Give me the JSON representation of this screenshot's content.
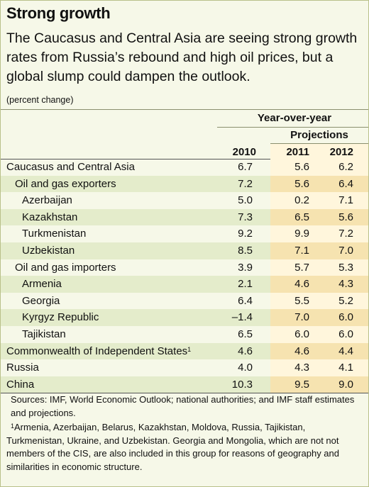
{
  "title": "Strong growth",
  "subtitle": "The Caucasus and Central Asia are seeing strong growth rates from Russia’s rebound and high oil prices, but a global slump could dampen the outlook.",
  "unit": "(percent change)",
  "header": {
    "group": "Year-over-year",
    "projections": "Projections",
    "columns": [
      "2010",
      "2011",
      "2012"
    ]
  },
  "rows": [
    {
      "label": "Caucasus and Central Asia",
      "values": [
        "6.7",
        "5.6",
        "6.2"
      ]
    },
    {
      "label": "Oil and gas exporters",
      "values": [
        "7.2",
        "5.6",
        "6.4"
      ]
    },
    {
      "label": "Azerbaijan",
      "values": [
        "5.0",
        "0.2",
        "7.1"
      ]
    },
    {
      "label": "Kazakhstan",
      "values": [
        "7.3",
        "6.5",
        "5.6"
      ]
    },
    {
      "label": "Turkmenistan",
      "values": [
        "9.2",
        "9.9",
        "7.2"
      ]
    },
    {
      "label": "Uzbekistan",
      "values": [
        "8.5",
        "7.1",
        "7.0"
      ]
    },
    {
      "label": "Oil and gas importers",
      "values": [
        "3.9",
        "5.7",
        "5.3"
      ]
    },
    {
      "label": "Armenia",
      "values": [
        "2.1",
        "4.6",
        "4.3"
      ]
    },
    {
      "label": "Georgia",
      "values": [
        "6.4",
        "5.5",
        "5.2"
      ]
    },
    {
      "label": "Kyrgyz Republic",
      "values": [
        "–1.4",
        "7.0",
        "6.0"
      ]
    },
    {
      "label": "Tajikistan",
      "values": [
        "6.5",
        "6.0",
        "6.0"
      ]
    },
    {
      "label": "Commonwealth of Independent States",
      "footnote": "1",
      "values": [
        "4.6",
        "4.6",
        "4.4"
      ]
    },
    {
      "label": "Russia",
      "values": [
        "4.0",
        "4.3",
        "4.1"
      ]
    },
    {
      "label": "China",
      "values": [
        "10.3",
        "9.5",
        "9.0"
      ]
    }
  ],
  "sources": "Sources: IMF, World Economic Outlook; national authorities; and IMF staff estimates and projections.",
  "footnote": {
    "mark": "1",
    "text": "Armenia, Azerbaijan, Belarus, Kazakhstan, Moldova, Russia, Tajikistan, Turkmenistan, Ukraine, and Uzbekistan. Georgia and Mongolia, which are not not members of the CIS, are also included in this group for reasons of geography and similarities in economic structure."
  },
  "colors": {
    "background": "#f6f8e8",
    "row_green": "#e4eccb",
    "projection_light": "#fff6dc",
    "projection_dark": "#f6e3b0"
  }
}
